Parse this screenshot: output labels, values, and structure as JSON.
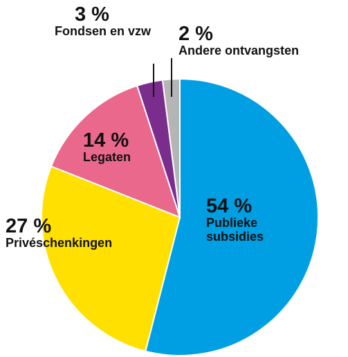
{
  "chart_data": {
    "type": "pie",
    "categories": [
      "Publieke subsidies",
      "Privéschenkingen",
      "Legaten",
      "Fondsen en vzw",
      "Andere ontvangsten"
    ],
    "values": [
      54,
      27,
      14,
      3,
      2
    ],
    "value_labels": [
      "54 %",
      "27 %",
      "14 %",
      "3 %",
      "2 %"
    ],
    "colors": [
      "#009fe3",
      "#ffe000",
      "#e9688c",
      "#7b2d8e",
      "#b5b5b5"
    ]
  }
}
